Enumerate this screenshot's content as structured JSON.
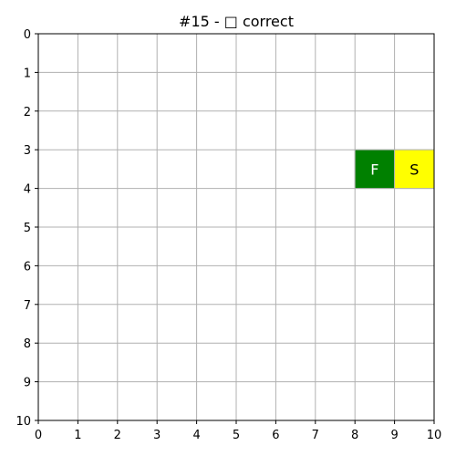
{
  "title": "#15 - □ correct",
  "grid": {
    "cols": 10,
    "rows": 10,
    "x_ticks": [
      "0",
      "1",
      "2",
      "3",
      "4",
      "5",
      "6",
      "7",
      "8",
      "9",
      "10"
    ],
    "y_ticks": [
      "0",
      "1",
      "2",
      "3",
      "4",
      "5",
      "6",
      "7",
      "8",
      "9",
      "10"
    ],
    "show_grid": true
  },
  "cells": [
    {
      "name": "finish-cell",
      "label": "F",
      "col": 8,
      "row": 3,
      "fill": "#008000",
      "text_color": "#ffffff"
    },
    {
      "name": "start-cell",
      "label": "S",
      "col": 9,
      "row": 3,
      "fill": "#ffff00",
      "text_color": "#000000"
    }
  ],
  "colors": {
    "grid_line": "#b0b0b0",
    "axes": "#000000",
    "background": "#ffffff"
  }
}
